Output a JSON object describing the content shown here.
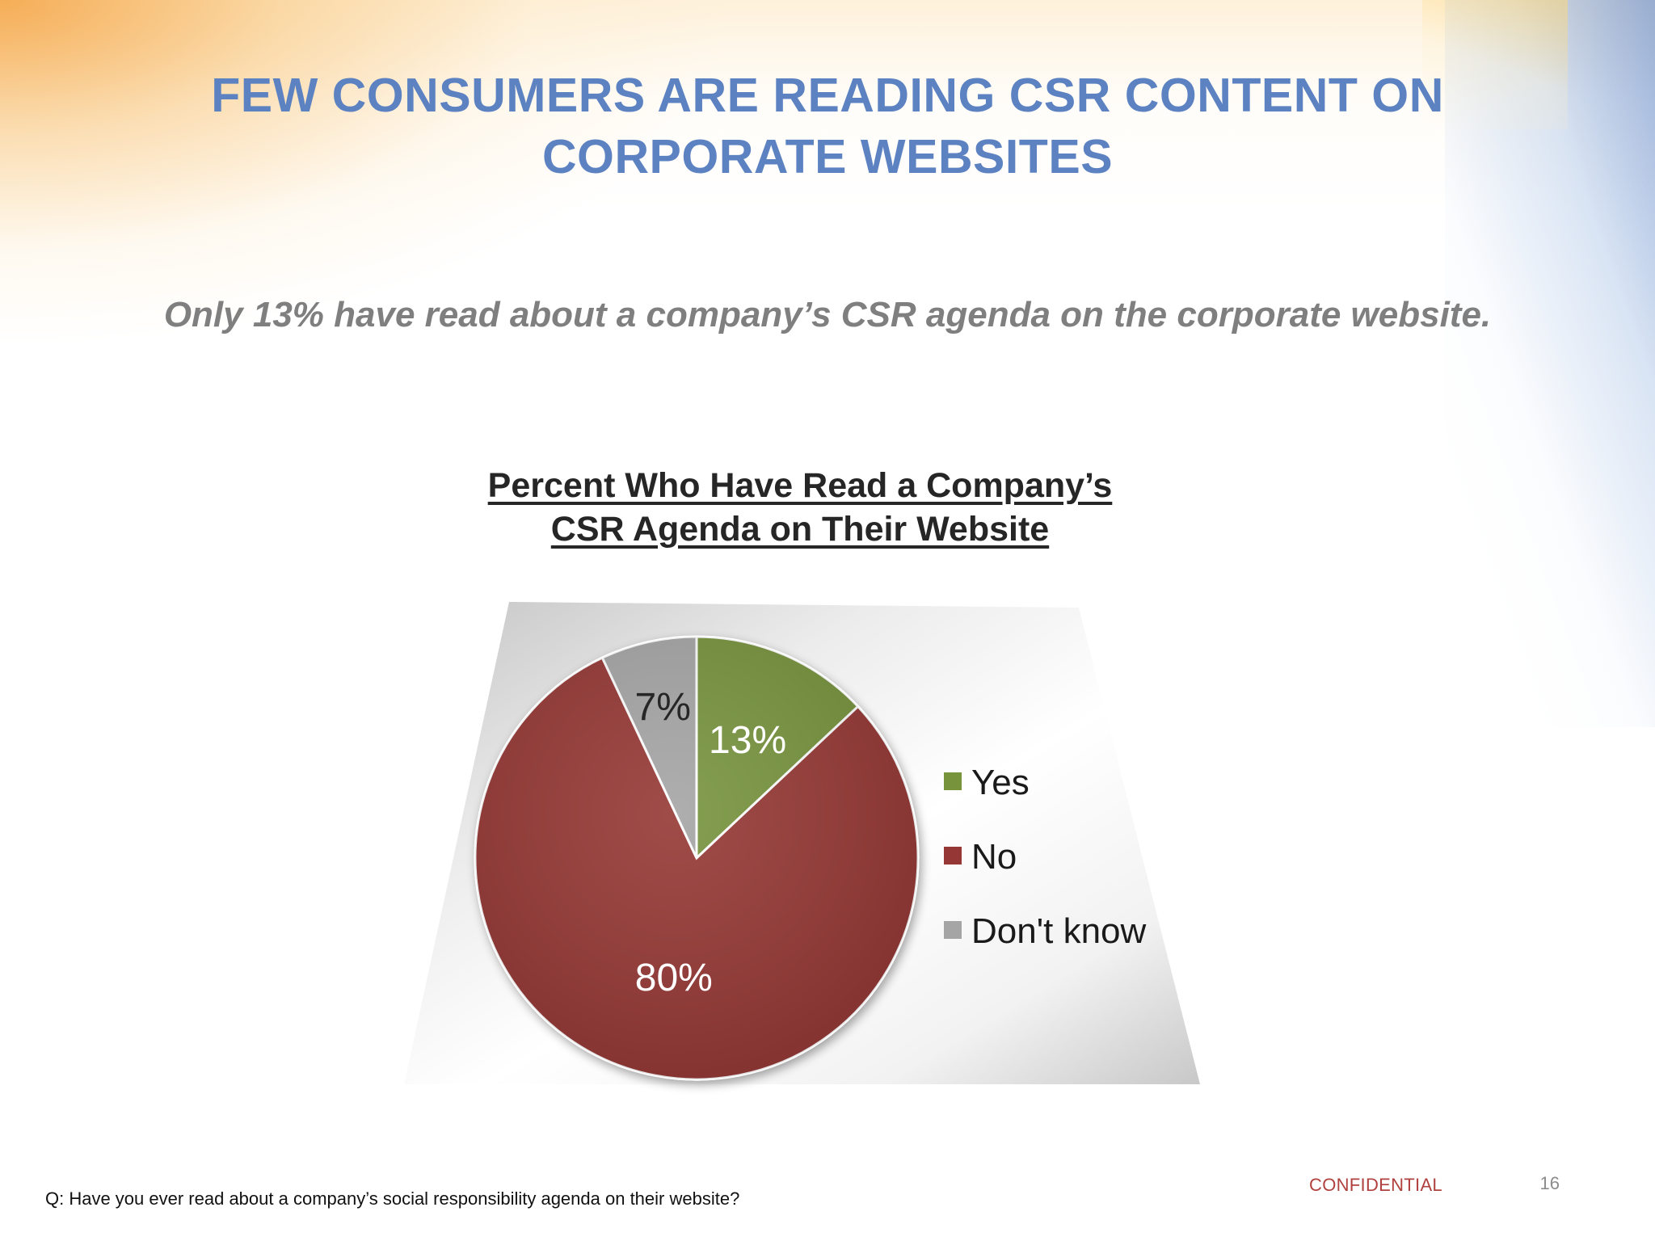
{
  "slide": {
    "title": "FEW CONSUMERS ARE READING CSR CONTENT ON CORPORATE WEBSITES",
    "subtitle": "Only 13% have read about a company’s CSR agenda on the corporate website.",
    "question": "Q: Have you ever read about a company’s social responsibility agenda on their website?",
    "confidential": "CONFIDENTIAL",
    "page_number": "16"
  },
  "chart_data": {
    "type": "pie",
    "title_lines": [
      "Percent Who Have Read a Company’s",
      "CSR Agenda on Their Website"
    ],
    "categories": [
      "Yes",
      "No",
      "Don't know"
    ],
    "values": [
      13,
      80,
      7
    ],
    "value_labels": [
      "13%",
      "80%",
      "7%"
    ],
    "colors": [
      "#77933c",
      "#953735",
      "#a5a5a5"
    ],
    "label_colors": [
      "#ffffff",
      "#ffffff",
      "#262626"
    ],
    "legend": {
      "position": "right"
    }
  }
}
